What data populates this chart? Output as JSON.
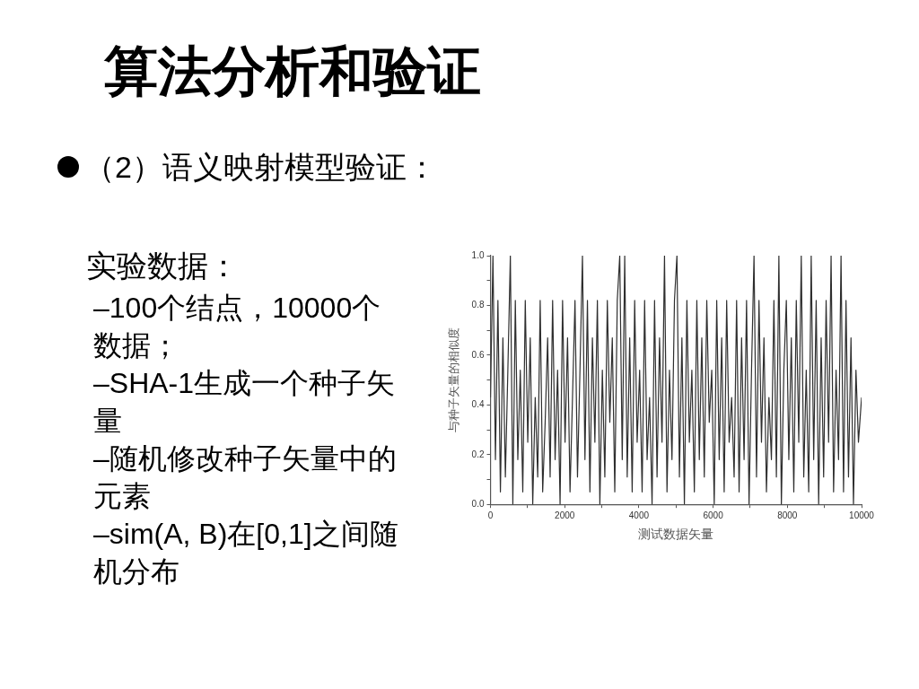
{
  "chart_data": {
    "type": "line",
    "title": "算法分析和验证",
    "subtitle": "（2）语义映射模型验证：",
    "annotations": [
      "实验数据：",
      "–100个结点，10000个数据；",
      "–SHA-1生成一个种子矢量",
      "–随机修改种子矢量中的元素",
      "–sim(A, B)在[0,1]之间随机分布"
    ],
    "xlabel": "测试数据矢量",
    "ylabel": "与种子矢量的相似度",
    "x": [
      0,
      67,
      134,
      201,
      268,
      335,
      402,
      469,
      536,
      603,
      670,
      737,
      804,
      871,
      938,
      1005,
      1072,
      1139,
      1206,
      1273,
      1340,
      1407,
      1474,
      1541,
      1608,
      1675,
      1742,
      1809,
      1876,
      1943,
      2010,
      2077,
      2144,
      2211,
      2278,
      2345,
      2412,
      2479,
      2546,
      2613,
      2680,
      2747,
      2814,
      2881,
      2948,
      3015,
      3082,
      3149,
      3216,
      3283,
      3350,
      3417,
      3484,
      3551,
      3618,
      3685,
      3752,
      3819,
      3886,
      3953,
      4020,
      4087,
      4154,
      4221,
      4288,
      4355,
      4422,
      4489,
      4556,
      4623,
      4690,
      4757,
      4824,
      4891,
      4958,
      5025,
      5092,
      5159,
      5226,
      5293,
      5360,
      5427,
      5494,
      5561,
      5628,
      5695,
      5762,
      5829,
      5896,
      5963,
      6030,
      6097,
      6164,
      6231,
      6298,
      6365,
      6432,
      6499,
      6566,
      6633,
      6700,
      6767,
      6834,
      6901,
      6968,
      7035,
      7102,
      7169,
      7236,
      7303,
      7370,
      7437,
      7504,
      7571,
      7638,
      7705,
      7772,
      7839,
      7906,
      7973,
      8040,
      8107,
      8174,
      8241,
      8308,
      8375,
      8442,
      8509,
      8576,
      8643,
      8710,
      8777,
      8844,
      8911,
      8978,
      9045,
      9112,
      9179,
      9246,
      9313,
      9380,
      9447,
      9514,
      9581,
      9648,
      9715,
      9782,
      9849,
      9916,
      10000
    ],
    "values": [
      0.43,
      1.0,
      0.18,
      0.82,
      0.05,
      0.67,
      0.11,
      0.54,
      1.0,
      0.0,
      0.82,
      0.18,
      0.54,
      0.05,
      0.82,
      0.25,
      0.67,
      0.0,
      0.43,
      0.11,
      0.82,
      0.05,
      0.33,
      0.67,
      0.11,
      0.82,
      0.18,
      0.54,
      0.0,
      0.82,
      0.25,
      0.67,
      0.05,
      0.43,
      0.82,
      0.11,
      0.54,
      1.0,
      0.18,
      0.82,
      0.05,
      0.67,
      0.25,
      0.82,
      0.0,
      0.54,
      0.11,
      0.82,
      0.33,
      0.67,
      0.05,
      0.82,
      1.0,
      0.18,
      1.0,
      0.11,
      0.67,
      0.05,
      0.82,
      0.25,
      0.54,
      0.05,
      0.82,
      0.18,
      0.43,
      0.0,
      0.82,
      0.11,
      0.67,
      0.25,
      1.0,
      0.05,
      0.54,
      0.18,
      0.82,
      1.0,
      0.11,
      0.67,
      0.0,
      0.82,
      0.25,
      0.54,
      0.05,
      0.82,
      0.18,
      0.67,
      0.11,
      0.82,
      0.33,
      0.54,
      0.0,
      0.82,
      0.18,
      0.67,
      0.05,
      0.82,
      0.25,
      0.43,
      0.11,
      0.82,
      0.05,
      0.67,
      0.18,
      0.82,
      0.0,
      0.54,
      1.0,
      0.11,
      0.82,
      0.25,
      0.67,
      0.05,
      0.43,
      0.18,
      0.82,
      0.11,
      1.0,
      0.0,
      0.54,
      0.82,
      0.18,
      0.67,
      0.05,
      0.82,
      0.25,
      1.0,
      0.11,
      0.54,
      0.05,
      1.0,
      0.18,
      0.82,
      0.0,
      0.67,
      0.11,
      0.82,
      0.25,
      1.0,
      0.05,
      0.54,
      0.18,
      1.0,
      0.05,
      0.82,
      0.11,
      0.67,
      0.0,
      0.54,
      0.25,
      0.43
    ],
    "color": "#2e2e2e",
    "marker": "none",
    "xlim": [
      0,
      10000
    ],
    "xticks": [
      0,
      {
        "value": 1000,
        "label": null
      },
      2000,
      {
        "value": 3000,
        "label": null
      },
      4000,
      {
        "value": 5000,
        "label": null
      },
      6000,
      {
        "value": 7000,
        "label": null
      },
      8000,
      {
        "value": 9000,
        "label": null
      },
      10000
    ],
    "ylim": [
      0,
      1
    ],
    "yticks": [
      {
        "value": 0,
        "label": "0.0"
      },
      {
        "value": 0.1,
        "label": null
      },
      {
        "value": 0.2,
        "label": "0.2"
      },
      {
        "value": 0.3,
        "label": null
      },
      {
        "value": 0.4,
        "label": "0.4"
      },
      {
        "value": 0.5,
        "label": null
      },
      {
        "value": 0.6,
        "label": "0.6"
      },
      {
        "value": 0.7,
        "label": null
      },
      {
        "value": 0.8,
        "label": "0.8"
      },
      {
        "value": 0.9,
        "label": null
      },
      {
        "value": 1,
        "label": "1.0"
      }
    ]
  }
}
